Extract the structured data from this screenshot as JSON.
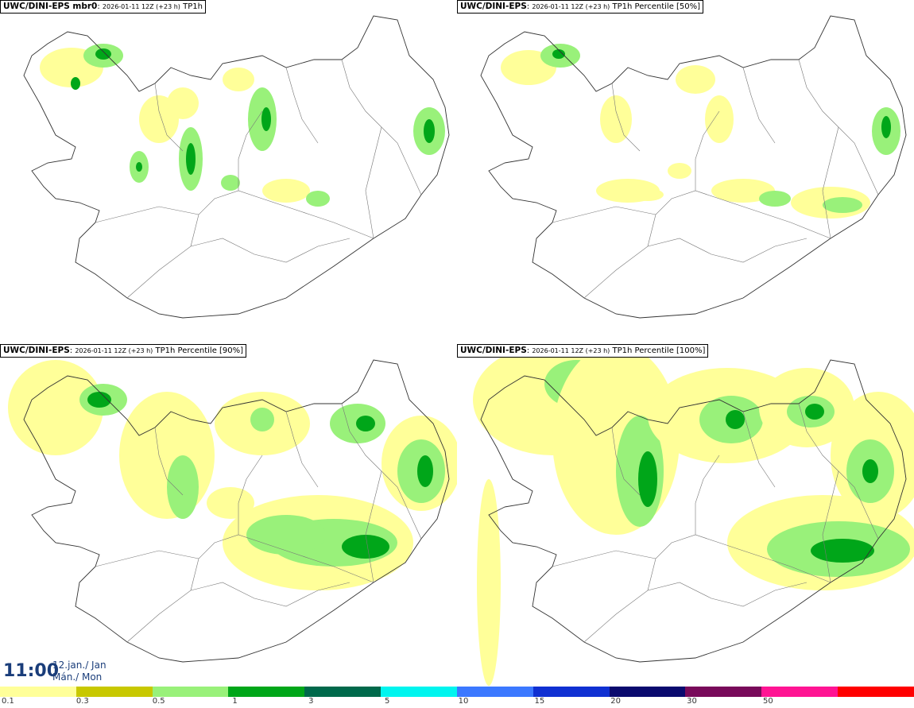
{
  "panels": [
    {
      "model": "UWC/DINI-EPS mbr0",
      "run": "2026-01-11 12Z (+23 h)",
      "field": "TP1h"
    },
    {
      "model": "UWC/DINI-EPS",
      "run": "2026-01-11 12Z (+23 h)",
      "field": "TP1h Percentile [50%]"
    },
    {
      "model": "UWC/DINI-EPS",
      "run": "2026-01-11 12Z (+23 h)",
      "field": "TP1h Percentile [90%]"
    },
    {
      "model": "UWC/DINI-EPS",
      "run": "2026-01-11 12Z (+23 h)",
      "field": "TP1h Percentile [100%]"
    }
  ],
  "valid_time": {
    "time": "11:00",
    "date_line1": "12.jan./ Jan",
    "date_line2": "Mán./ Mon"
  },
  "legend": {
    "colors": [
      "#ffff99",
      "#c8c800",
      "#99f17a",
      "#00a619",
      "#00694b",
      "#00f5ef",
      "#3b78ff",
      "#1030d2",
      "#0a0a6e",
      "#780a5a",
      "#ff1493",
      "#ff0000"
    ],
    "labels": [
      "0.1",
      "0.3",
      "0.5",
      "1",
      "3",
      "5",
      "10",
      "15",
      "20",
      "30",
      "50"
    ]
  }
}
